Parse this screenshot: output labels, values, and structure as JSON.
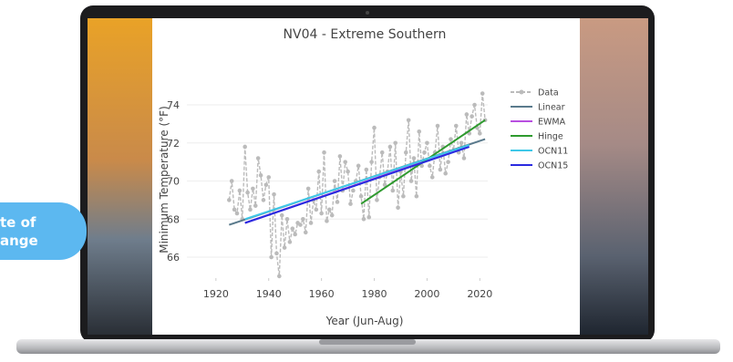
{
  "badge": {
    "lines": [
      "te of",
      "ange"
    ]
  },
  "chart_data": {
    "type": "line",
    "title": "NV04 - Extreme Southern",
    "x_label": "Year (Jun-Aug)",
    "y_label": "Minimum Temperature (°F)",
    "xlim": [
      1909,
      2023
    ],
    "xticks": [
      1920,
      1940,
      1960,
      1980,
      2000,
      2020
    ],
    "ylim": [
      64.9,
      75.2
    ],
    "yticks": [
      66,
      68,
      70,
      72,
      74
    ],
    "grid": true,
    "legend": "right",
    "series": [
      {
        "name": "Data",
        "color": "#bbbbbb",
        "x": [
          1925,
          1926,
          1927,
          1928,
          1929,
          1930,
          1931,
          1932,
          1933,
          1934,
          1935,
          1936,
          1937,
          1938,
          1939,
          1940,
          1941,
          1942,
          1943,
          1944,
          1945,
          1946,
          1947,
          1948,
          1949,
          1950,
          1951,
          1952,
          1953,
          1954,
          1955,
          1956,
          1957,
          1958,
          1959,
          1960,
          1961,
          1962,
          1963,
          1964,
          1965,
          1966,
          1967,
          1968,
          1969,
          1970,
          1971,
          1972,
          1973,
          1974,
          1975,
          1976,
          1977,
          1978,
          1979,
          1980,
          1981,
          1982,
          1983,
          1984,
          1985,
          1986,
          1987,
          1988,
          1989,
          1990,
          1991,
          1992,
          1993,
          1994,
          1995,
          1996,
          1997,
          1998,
          1999,
          2000,
          2001,
          2002,
          2003,
          2004,
          2005,
          2006,
          2007,
          2008,
          2009,
          2010,
          2011,
          2012,
          2013,
          2014,
          2015,
          2016,
          2017,
          2018,
          2019,
          2020,
          2021,
          2022
        ],
        "values": [
          69.0,
          70.0,
          68.5,
          68.3,
          69.5,
          68.0,
          71.8,
          69.4,
          68.5,
          69.6,
          68.7,
          71.2,
          70.3,
          69.0,
          69.8,
          70.2,
          66.0,
          69.3,
          66.2,
          65.0,
          68.2,
          66.5,
          68.0,
          66.8,
          67.5,
          67.2,
          67.8,
          67.7,
          68.0,
          67.3,
          69.6,
          67.8,
          69.0,
          68.5,
          70.5,
          68.3,
          71.5,
          67.9,
          68.5,
          68.2,
          70.0,
          68.9,
          71.3,
          69.5,
          71.0,
          70.5,
          68.8,
          69.5,
          70.0,
          70.8,
          69.2,
          68.0,
          70.6,
          68.1,
          71.0,
          72.8,
          69.0,
          70.2,
          71.5,
          69.8,
          70.5,
          71.8,
          69.5,
          72.0,
          68.6,
          70.5,
          69.2,
          71.5,
          73.2,
          70.0,
          71.2,
          69.2,
          72.6,
          70.8,
          71.5,
          72.0,
          70.8,
          70.2,
          71.5,
          72.9,
          70.6,
          71.8,
          70.4,
          71.0,
          72.2,
          71.6,
          72.9,
          71.5,
          72.0,
          71.2,
          73.5,
          72.5,
          73.4,
          74.0,
          72.8,
          72.5,
          74.6,
          73.2
        ]
      },
      {
        "name": "Linear",
        "color": "#5a7a8c",
        "x": [
          1925,
          2022
        ],
        "values": [
          67.7,
          72.2
        ]
      },
      {
        "name": "EWMA",
        "color": "#b84fe0",
        "x": [
          1931,
          2015
        ],
        "values": [
          67.8,
          71.8
        ]
      },
      {
        "name": "Hinge",
        "color": "#2e9a2e",
        "x": [
          1975,
          2022
        ],
        "values": [
          68.8,
          73.2
        ]
      },
      {
        "name": "OCN11",
        "color": "#3ec8e8",
        "x": [
          1931,
          2016
        ],
        "values": [
          68.0,
          71.9
        ]
      },
      {
        "name": "OCN15",
        "color": "#2a2ae0",
        "x": [
          1931,
          2016
        ],
        "values": [
          67.8,
          71.8
        ]
      }
    ]
  }
}
